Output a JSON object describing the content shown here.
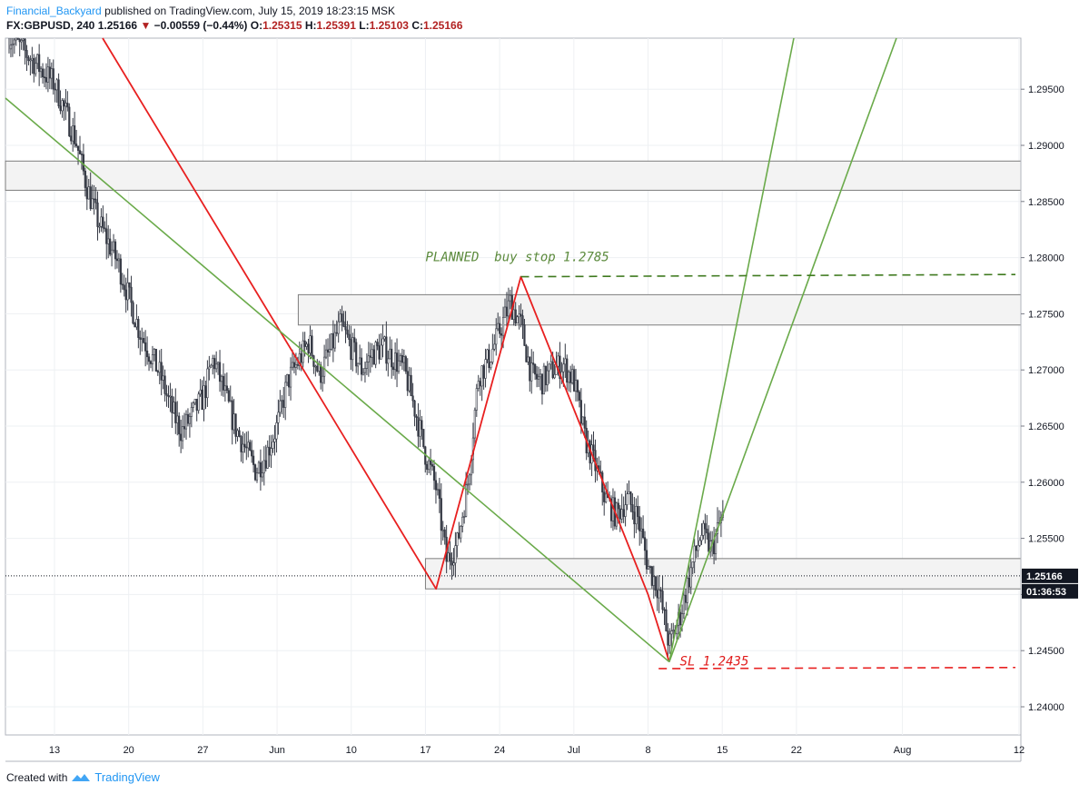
{
  "header": {
    "author": "Financial_Backyard",
    "published": "published on TradingView.com, July 15, 2019 18:23:15 MSK",
    "symbol": "FX:GBPUSD, 240",
    "last": "1.25166",
    "change": "−0.00559 (−0.44%)",
    "o_label": "O:",
    "o": "1.25315",
    "h_label": "H:",
    "h": "1.25391",
    "l_label": "L:",
    "l": "1.25103",
    "c_label": "C:",
    "c": "1.25166"
  },
  "footer": {
    "created_with": "Created with",
    "brand": "TradingView"
  },
  "chart_data": {
    "type": "candlestick",
    "symbol": "FX:GBPUSD",
    "interval": "240",
    "ylim": [
      1.2355,
      1.2985
    ],
    "y_ticks": [
      1.24,
      1.245,
      1.25,
      1.255,
      1.26,
      1.265,
      1.27,
      1.275,
      1.28,
      1.285,
      1.29,
      1.295
    ],
    "y_tick_labels": [
      "1.24000",
      "1.24500",
      "1.25000",
      "1.25500",
      "1.26000",
      "1.26500",
      "1.27000",
      "1.27500",
      "1.28000",
      "1.28500",
      "1.29000",
      "1.29500"
    ],
    "x_ticks": [
      {
        "label": "13",
        "date": "2019-05-13"
      },
      {
        "label": "20",
        "date": "2019-05-20"
      },
      {
        "label": "27",
        "date": "2019-05-27"
      },
      {
        "label": "Jun",
        "date": "2019-06-03"
      },
      {
        "label": "10",
        "date": "2019-06-10"
      },
      {
        "label": "17",
        "date": "2019-06-17"
      },
      {
        "label": "24",
        "date": "2019-06-24"
      },
      {
        "label": "Jul",
        "date": "2019-07-01"
      },
      {
        "label": "8",
        "date": "2019-07-08"
      },
      {
        "label": "15",
        "date": "2019-07-15"
      },
      {
        "label": "22",
        "date": "2019-07-22"
      },
      {
        "label": "Aug",
        "date": "2019-08-01"
      },
      {
        "label": "12",
        "date": "2019-08-12"
      }
    ],
    "price_path": [
      [
        "2019-05-08",
        1.3005
      ],
      [
        "2019-05-10",
        1.2985
      ],
      [
        "2019-05-13",
        1.2955
      ],
      [
        "2019-05-15",
        1.2905
      ],
      [
        "2019-05-16",
        1.2865
      ],
      [
        "2019-05-17",
        1.2835
      ],
      [
        "2019-05-19",
        1.2795
      ],
      [
        "2019-05-21",
        1.2735
      ],
      [
        "2019-05-22",
        1.2715
      ],
      [
        "2019-05-23",
        1.2695
      ],
      [
        "2019-05-24",
        1.2665
      ],
      [
        "2019-05-25",
        1.2645
      ],
      [
        "2019-05-27",
        1.2675
      ],
      [
        "2019-05-28",
        1.271
      ],
      [
        "2019-05-30",
        1.265
      ],
      [
        "2019-06-01",
        1.261
      ],
      [
        "2019-06-02",
        1.2625
      ],
      [
        "2019-06-03",
        1.265
      ],
      [
        "2019-06-04",
        1.269
      ],
      [
        "2019-06-06",
        1.2725
      ],
      [
        "2019-06-07",
        1.2695
      ],
      [
        "2019-06-09",
        1.274
      ],
      [
        "2019-06-11",
        1.27
      ],
      [
        "2019-06-12",
        1.2715
      ],
      [
        "2019-06-13",
        1.272
      ],
      [
        "2019-06-14",
        1.271
      ],
      [
        "2019-06-15",
        1.27
      ],
      [
        "2019-06-16",
        1.2665
      ],
      [
        "2019-06-17",
        1.2625
      ],
      [
        "2019-06-18",
        1.2595
      ],
      [
        "2019-06-19",
        1.253
      ],
      [
        "2019-06-20",
        1.2545
      ],
      [
        "2019-06-21",
        1.26
      ],
      [
        "2019-06-22",
        1.2695
      ],
      [
        "2019-06-23",
        1.271
      ],
      [
        "2019-06-24",
        1.2735
      ],
      [
        "2019-06-25",
        1.276
      ],
      [
        "2019-06-26",
        1.274
      ],
      [
        "2019-06-27",
        1.2695
      ],
      [
        "2019-06-28",
        1.269
      ],
      [
        "2019-06-29",
        1.27
      ],
      [
        "2019-06-30",
        1.2705
      ],
      [
        "2019-07-01",
        1.269
      ],
      [
        "2019-07-02",
        1.264
      ],
      [
        "2019-07-03",
        1.2615
      ],
      [
        "2019-07-04",
        1.2585
      ],
      [
        "2019-07-05",
        1.257
      ],
      [
        "2019-07-06",
        1.2585
      ],
      [
        "2019-07-07",
        1.257
      ],
      [
        "2019-07-08",
        1.2525
      ],
      [
        "2019-07-09",
        1.2505
      ],
      [
        "2019-07-10",
        1.2455
      ],
      [
        "2019-07-11",
        1.248
      ],
      [
        "2019-07-12",
        1.252
      ],
      [
        "2019-07-13",
        1.2555
      ],
      [
        "2019-07-14",
        1.254
      ],
      [
        "2019-07-15",
        1.257
      ],
      [
        "2019-07-16",
        1.2517
      ]
    ],
    "zones": [
      {
        "from": 1.286,
        "to": 1.2886,
        "date_from": "2019-05-06",
        "date_to": "2019-08-13"
      },
      {
        "from": 1.274,
        "to": 1.2767,
        "date_from": "2019-06-05",
        "date_to": "2019-08-13"
      },
      {
        "from": 1.2505,
        "to": 1.2532,
        "date_from": "2019-06-17",
        "date_to": "2019-08-13"
      }
    ],
    "annotations": [
      {
        "text": "PLANNED  buy stop 1.2785",
        "color": "#5b8a3c",
        "date": "2019-06-17",
        "price": 1.28
      },
      {
        "text": "SL 1.2435",
        "color": "#e01b1b",
        "date": "2019-07-11",
        "price": 1.244
      }
    ],
    "last_price": {
      "value": "1.25166",
      "countdown": "01:36:53"
    },
    "colors": {
      "red_line": "#e82020",
      "green_line": "#6aaa4a",
      "candle": "#363a45",
      "grid": "#eef0f3"
    }
  }
}
